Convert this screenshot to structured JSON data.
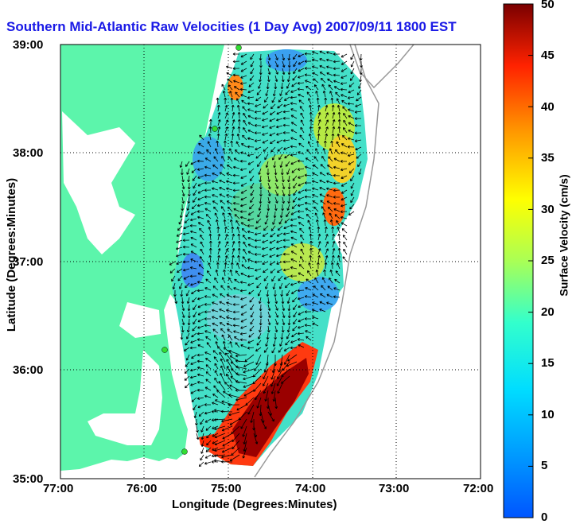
{
  "title": "Southern Mid-Atlantic Raw Velocities (1 Day Avg) 2007/09/11 1800 EST",
  "x_axis": {
    "label": "Longitude (Degrees:Minutes)",
    "ticks": [
      "77:00",
      "76:00",
      "75:00",
      "74:00",
      "73:00",
      "72:00"
    ]
  },
  "y_axis": {
    "label": "Latitude (Degrees:Minutes)",
    "ticks": [
      "39:00",
      "38:00",
      "37:00",
      "36:00",
      "35:00"
    ]
  },
  "colorbar": {
    "label": "Surface Velocity (cm/s)",
    "ticks": [
      "50",
      "45",
      "40",
      "35",
      "30",
      "25",
      "20",
      "15",
      "10",
      "5",
      "0"
    ],
    "min": 0,
    "max": 50
  },
  "colors": {
    "land": "#5cf5ab",
    "title": "#1a1ae6",
    "gridline": "#000000"
  }
}
